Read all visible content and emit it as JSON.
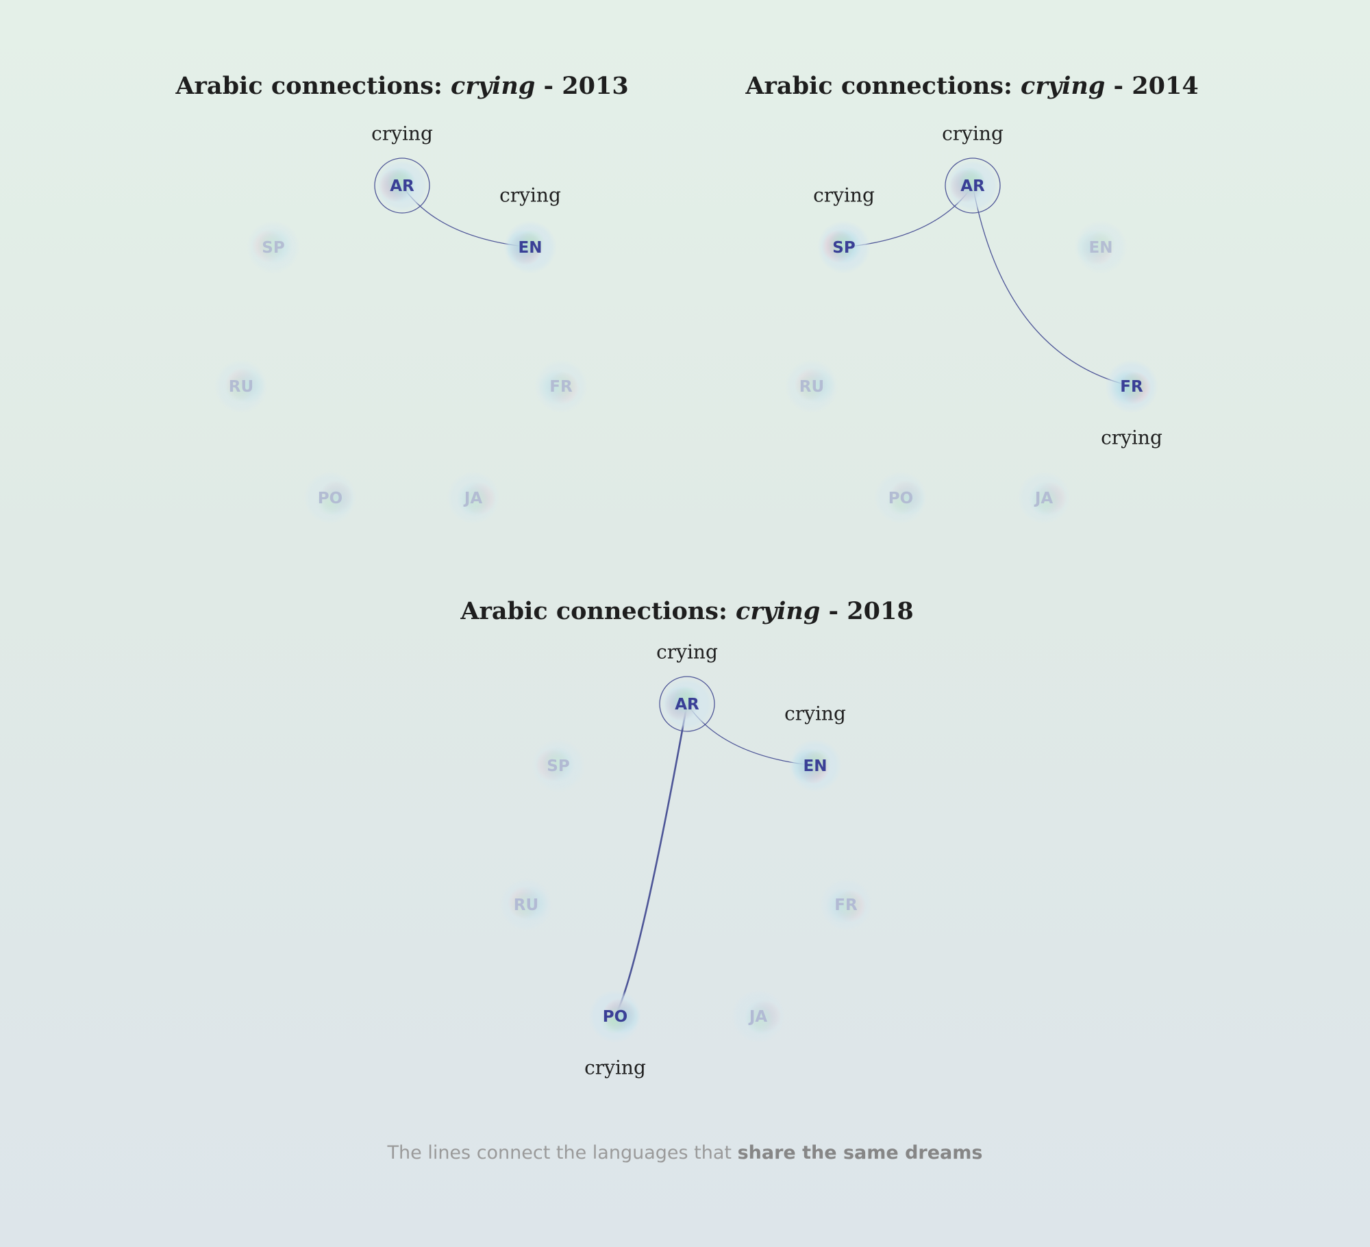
{
  "panels": [
    {
      "title_prefix": "Arabic connections: ",
      "title_word": "crying",
      "title_suffix": " - 2013",
      "nodes": [
        {
          "code": "AR",
          "role": "center",
          "word": "crying",
          "word_pos": "above"
        },
        {
          "code": "EN",
          "role": "connected",
          "word": "crying",
          "word_pos": "above"
        },
        {
          "code": "FR",
          "role": "faded"
        },
        {
          "code": "JA",
          "role": "faded"
        },
        {
          "code": "PO",
          "role": "faded"
        },
        {
          "code": "RU",
          "role": "faded"
        },
        {
          "code": "SP",
          "role": "faded"
        }
      ],
      "links": [
        {
          "from": "AR",
          "to": "EN",
          "strength": "thin"
        }
      ]
    },
    {
      "title_prefix": "Arabic connections: ",
      "title_word": "crying",
      "title_suffix": " - 2014",
      "nodes": [
        {
          "code": "AR",
          "role": "center",
          "word": "crying",
          "word_pos": "above"
        },
        {
          "code": "EN",
          "role": "faded"
        },
        {
          "code": "FR",
          "role": "connected",
          "word": "crying",
          "word_pos": "below"
        },
        {
          "code": "JA",
          "role": "faded"
        },
        {
          "code": "PO",
          "role": "faded"
        },
        {
          "code": "RU",
          "role": "faded"
        },
        {
          "code": "SP",
          "role": "connected",
          "word": "crying",
          "word_pos": "above"
        }
      ],
      "links": [
        {
          "from": "AR",
          "to": "SP",
          "strength": "thin"
        },
        {
          "from": "AR",
          "to": "FR",
          "strength": "thin"
        }
      ]
    },
    {
      "title_prefix": "Arabic connections: ",
      "title_word": "crying",
      "title_suffix": " - 2018",
      "nodes": [
        {
          "code": "AR",
          "role": "center",
          "word": "crying",
          "word_pos": "above"
        },
        {
          "code": "EN",
          "role": "connected",
          "word": "crying",
          "word_pos": "above"
        },
        {
          "code": "FR",
          "role": "faded"
        },
        {
          "code": "JA",
          "role": "faded"
        },
        {
          "code": "PO",
          "role": "connected",
          "word": "crying",
          "word_pos": "below"
        },
        {
          "code": "RU",
          "role": "faded"
        },
        {
          "code": "SP",
          "role": "faded"
        }
      ],
      "links": [
        {
          "from": "AR",
          "to": "EN",
          "strength": "thin"
        },
        {
          "from": "AR",
          "to": "PO",
          "strength": "thick"
        }
      ]
    }
  ],
  "caption_prefix": "The lines connect the languages that ",
  "caption_bold": "share the same dreams",
  "colors": {
    "node_text": "#3a3f96",
    "node_text_faded": "#8f96c4",
    "link": "#4d5597",
    "center_ring": "#4d5597",
    "blob_pink": "#f2b5c0",
    "blob_blue": "#a9dcea",
    "blob_green": "#bfe3cf"
  }
}
